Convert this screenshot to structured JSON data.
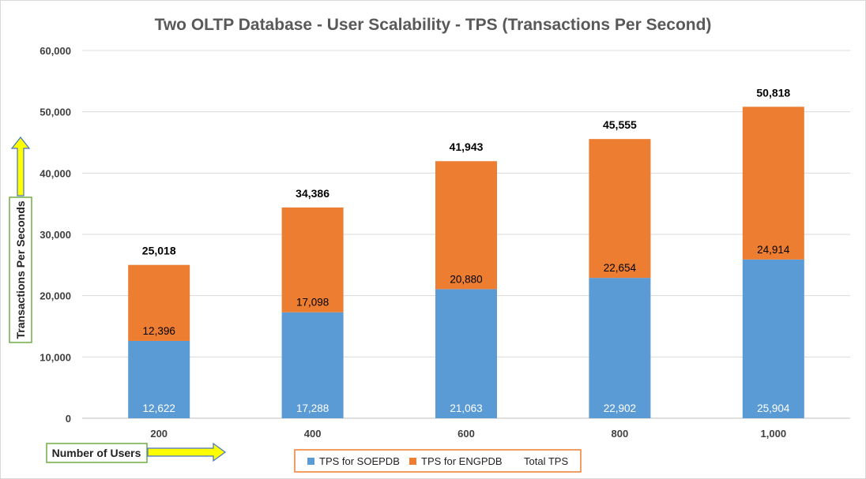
{
  "chart_data": {
    "type": "bar",
    "stacked": true,
    "title": "Two OLTP Database - User Scalability - TPS (Transactions Per Second)",
    "categories": [
      "200",
      "400",
      "600",
      "800",
      "1,000"
    ],
    "series": [
      {
        "name": "TPS for SOEPDB",
        "color": "#5b9bd5",
        "values": [
          12622,
          17288,
          21063,
          22902,
          25904
        ],
        "labels": [
          "12,622",
          "17,288",
          "21,063",
          "22,902",
          "25,904"
        ]
      },
      {
        "name": "TPS for ENGPDB",
        "color": "#ed7d31",
        "values": [
          12396,
          17098,
          20880,
          22654,
          24914
        ],
        "labels": [
          "12,396",
          "17,098",
          "20,880",
          "22,654",
          "24,914"
        ]
      }
    ],
    "totals": {
      "name": "Total TPS",
      "values": [
        25018,
        34386,
        41943,
        45555,
        50818
      ],
      "labels": [
        "25,018",
        "34,386",
        "41,943",
        "45,555",
        "50,818"
      ]
    },
    "ylim": [
      0,
      60000
    ],
    "yticks": [
      0,
      10000,
      20000,
      30000,
      40000,
      50000,
      60000
    ],
    "ytick_labels": [
      "0",
      "10,000",
      "20,000",
      "30,000",
      "40,000",
      "50,000",
      "60,000"
    ],
    "ylabel": "Transactions Per Seconds",
    "xlabel": "Number of Users",
    "grid": true,
    "legend_position": "bottom-center"
  },
  "colors": {
    "annotation_border": "#70ad47",
    "arrow_fill": "#ffff00",
    "arrow_stroke": "#4472c4",
    "legend_border": "#ed7d31",
    "gridline": "#d9d9d9"
  }
}
